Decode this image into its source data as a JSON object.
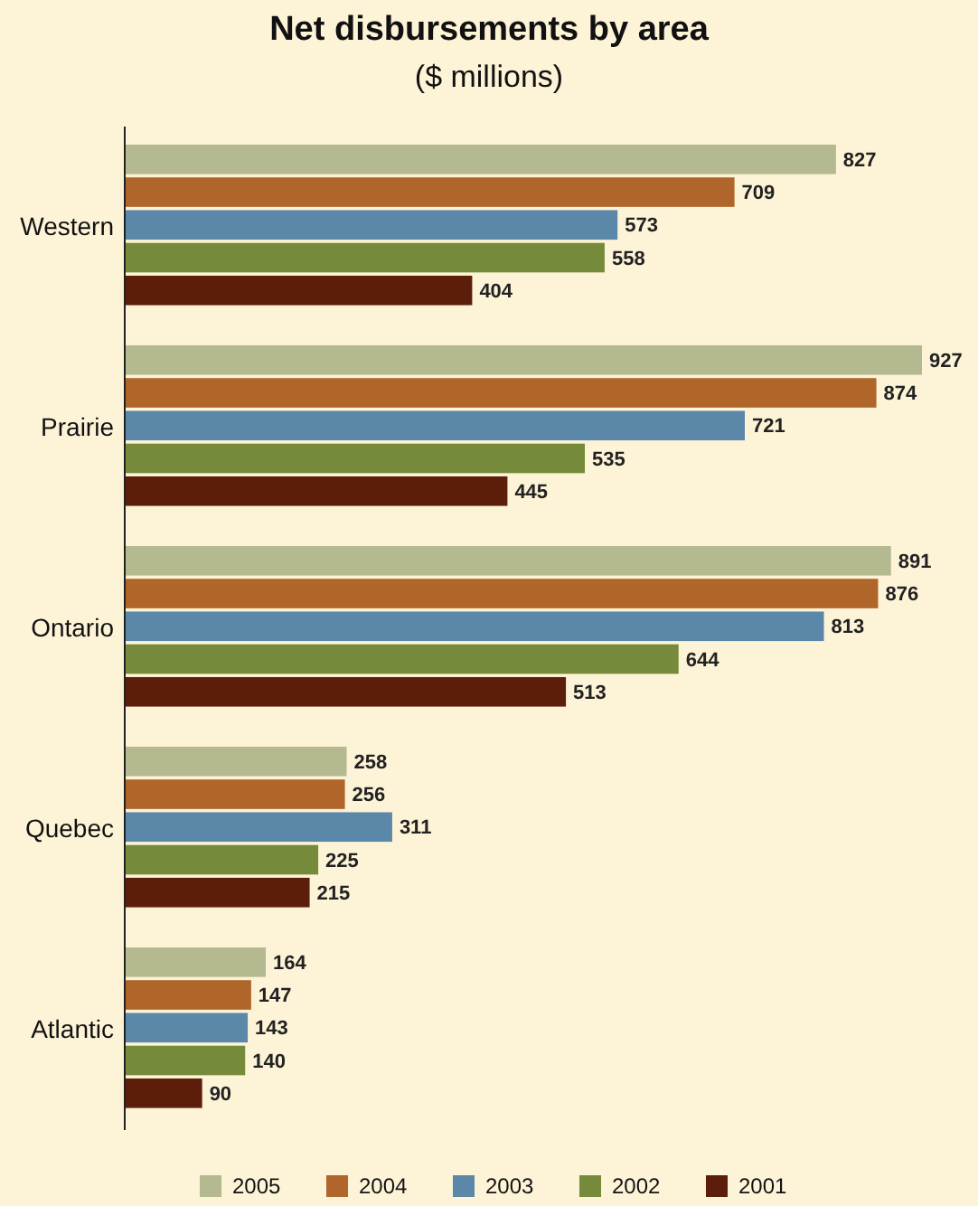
{
  "chart_data": {
    "type": "bar",
    "orientation": "horizontal",
    "title": "Net disbursements by area",
    "subtitle": "($ millions)",
    "categories": [
      "Western",
      "Prairie",
      "Ontario",
      "Quebec",
      "Atlantic"
    ],
    "data_labels": true,
    "legend": "bottom",
    "series": [
      {
        "name": "2005",
        "color": "#b5b98f",
        "values": [
          827,
          927,
          891,
          258,
          164
        ]
      },
      {
        "name": "2004",
        "color": "#b0652a",
        "values": [
          709,
          874,
          876,
          256,
          147
        ]
      },
      {
        "name": "2003",
        "color": "#5b87a8",
        "values": [
          573,
          721,
          813,
          311,
          143
        ]
      },
      {
        "name": "2002",
        "color": "#758a3a",
        "values": [
          558,
          535,
          644,
          225,
          140
        ]
      },
      {
        "name": "2001",
        "color": "#5c1e0a",
        "values": [
          404,
          445,
          513,
          215,
          90
        ]
      }
    ]
  }
}
